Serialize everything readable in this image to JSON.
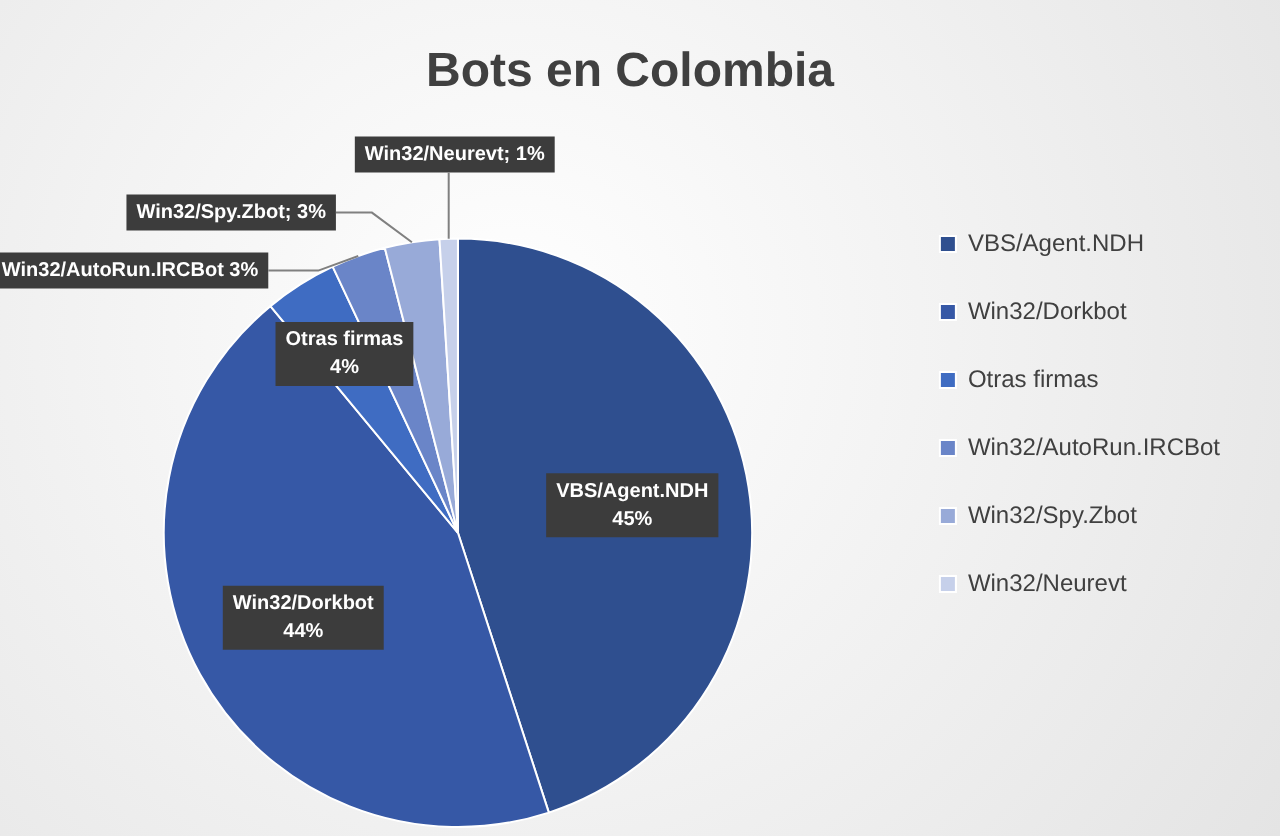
{
  "chart_data": {
    "type": "pie",
    "title": "Bots en Colombia",
    "categories": [
      "VBS/Agent.NDH",
      "Win32/Dorkbot",
      "Otras firmas",
      "Win32/AutoRun.IRCBot",
      "Win32/Spy.Zbot",
      "Win32/Neurevt"
    ],
    "values": [
      45,
      44,
      4,
      3,
      3,
      1
    ],
    "colors": [
      "#2f4f8f",
      "#3658a6",
      "#3f6cc2",
      "#6a85c8",
      "#98aad8",
      "#c6d0ea"
    ],
    "value_labels": [
      "VBS/Agent.NDH 45%",
      "Win32/Dorkbot 44%",
      "Otras firmas 4%",
      "Win32/AutoRun.IRCBot 3%",
      "Win32/Spy.Zbot; 3%",
      "Win32/Neurevt; 1%"
    ],
    "legend": "right"
  }
}
